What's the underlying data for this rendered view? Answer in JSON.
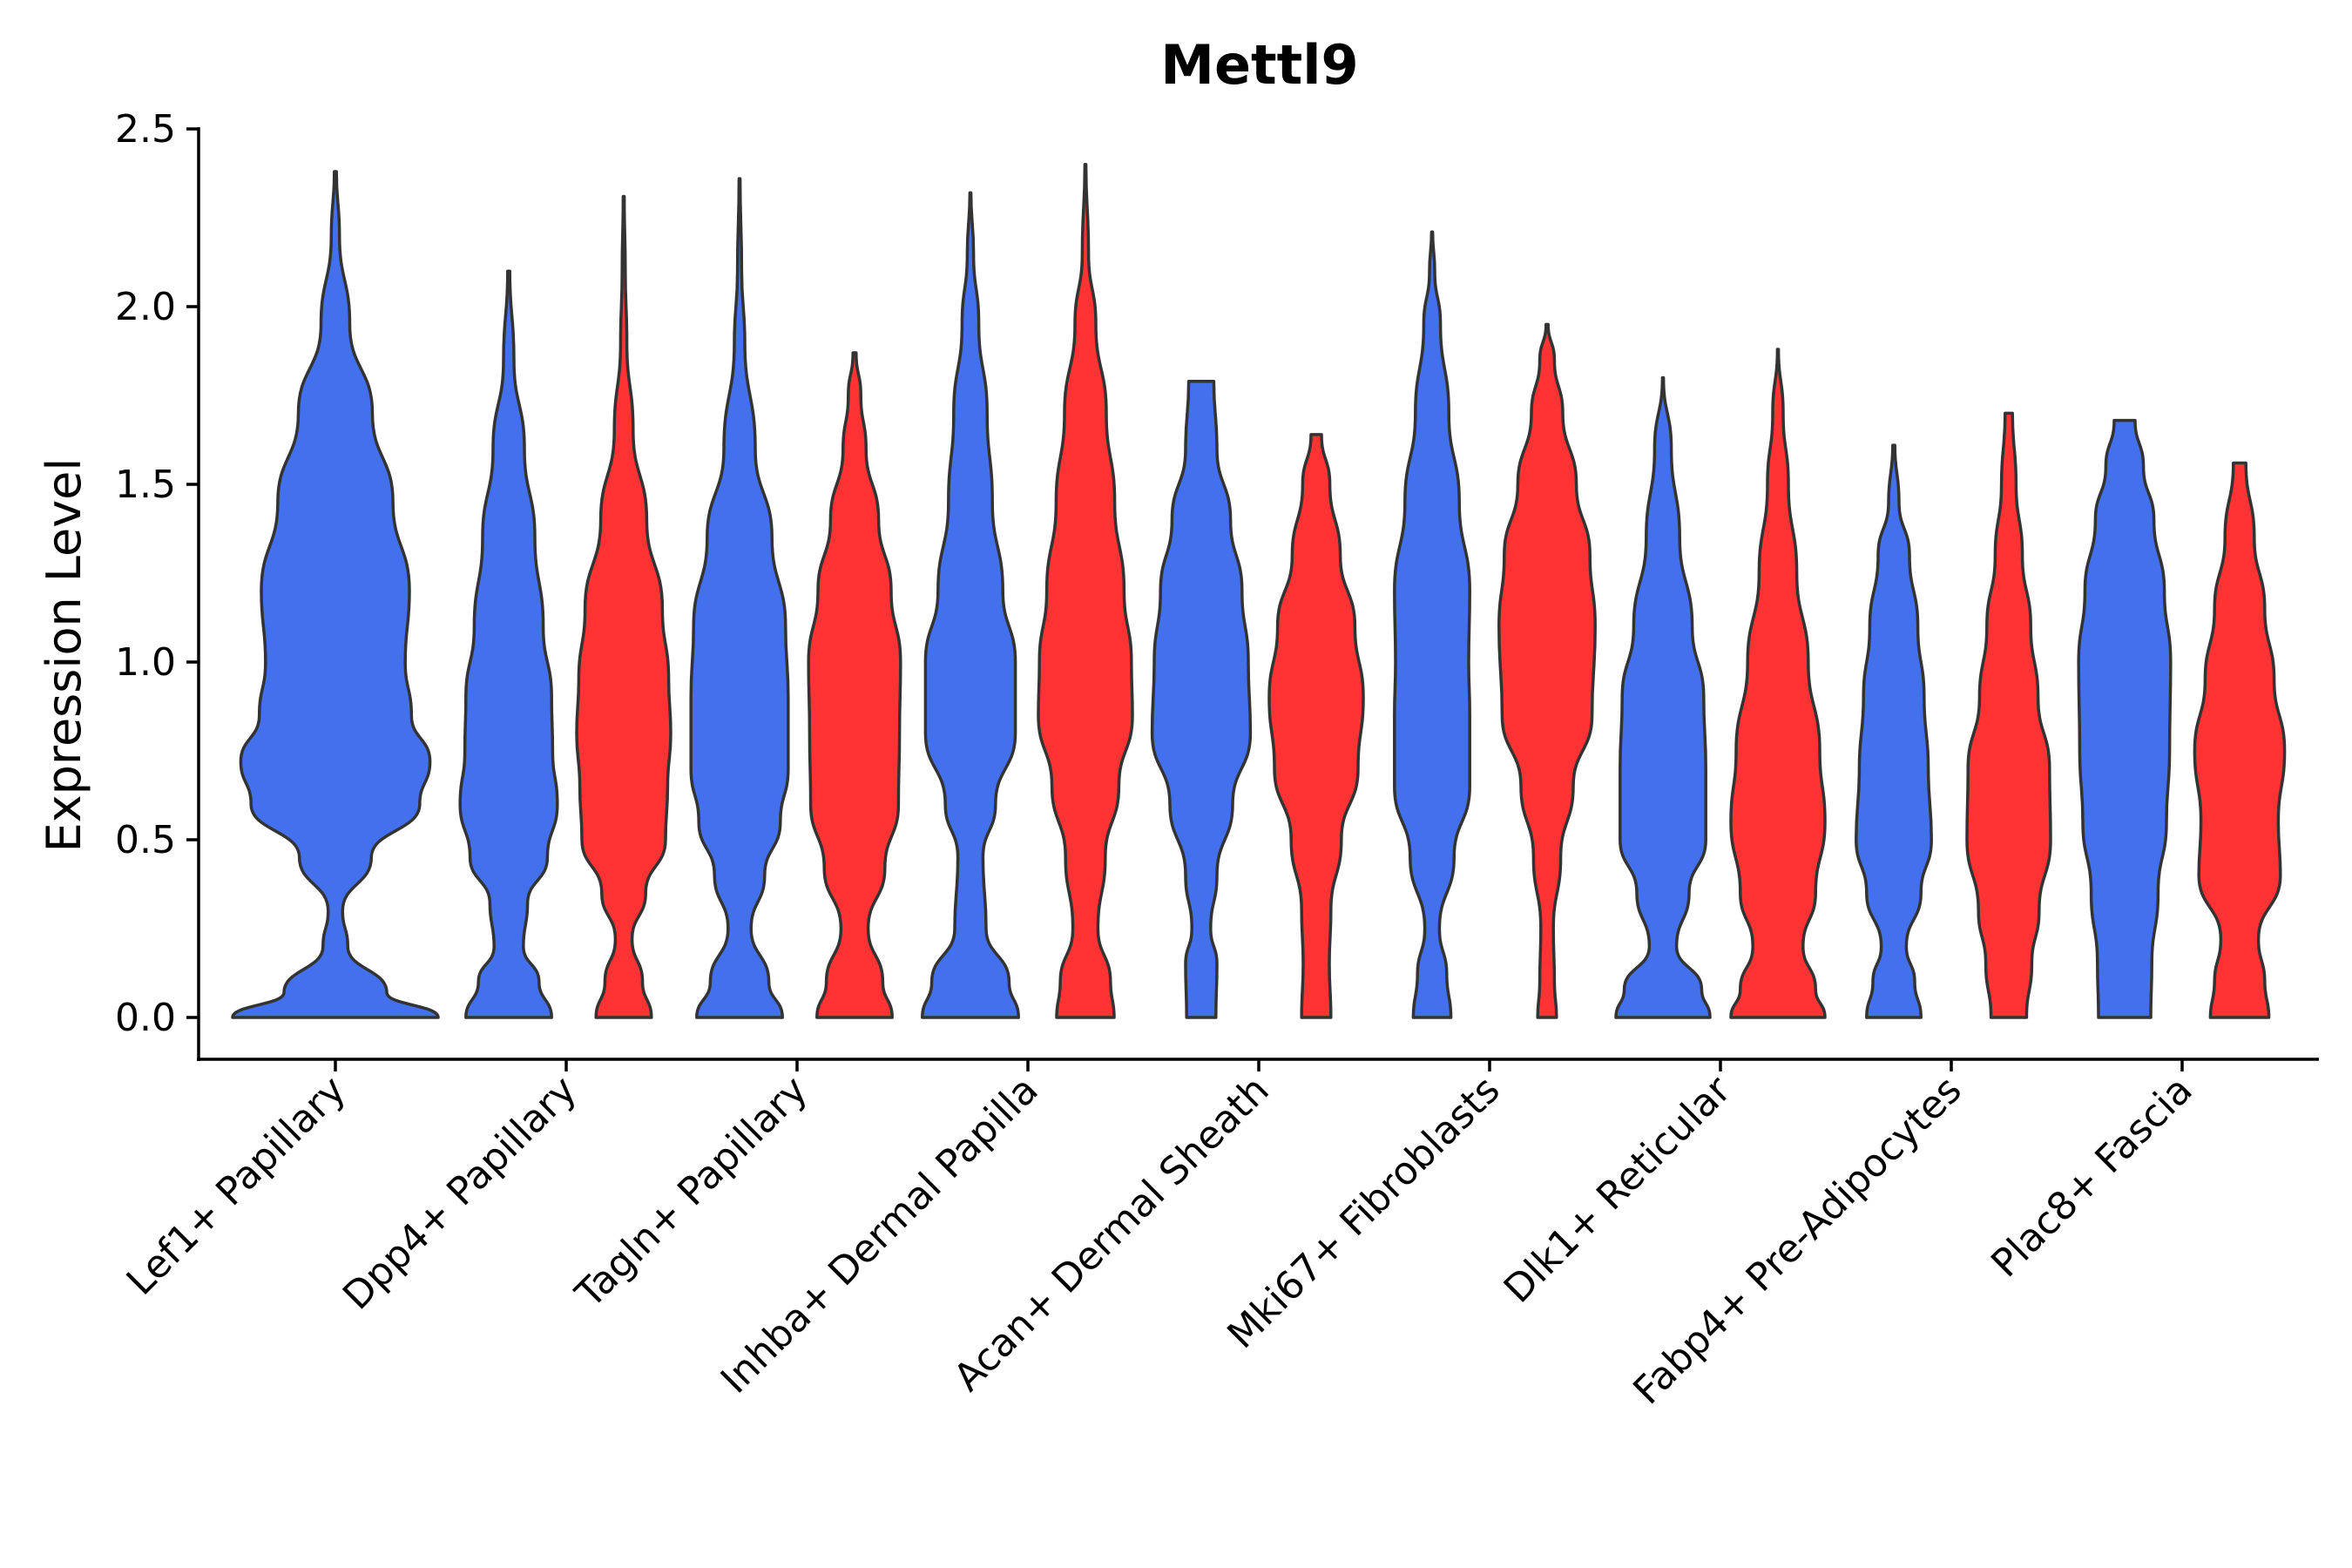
{
  "chart_data": {
    "type": "violin",
    "title": "Mettl9",
    "xlabel": "",
    "ylabel": "Expression Level",
    "ylim": [
      -0.12,
      2.52
    ],
    "yticks": [
      "0.0",
      "0.5",
      "1.0",
      "1.5",
      "2.0",
      "2.5"
    ],
    "ytick_values": [
      0,
      0.5,
      1.0,
      1.5,
      2.0,
      2.5
    ],
    "categories": [
      "Lef1+ Papillary",
      "Dpp4+ Papillary",
      "Tagln+ Papillary",
      "Inhba+ Dermal Papilla",
      "Acan+ Dermal Sheath",
      "Mki67+ Fibroblasts",
      "Dlk1+ Reticular",
      "Fabp4+ Pre-Adipocytes",
      "Plac8+ Fascia"
    ],
    "series_colors": {
      "blue": "#4370EC",
      "red": "#FF3333"
    },
    "violins": [
      {
        "category": 0,
        "group": "blue",
        "max": 2.38,
        "widths": [
          [
            0,
            1.0
          ],
          [
            0.07,
            0.5
          ],
          [
            0.2,
            0.12
          ],
          [
            0.3,
            0.07
          ],
          [
            0.45,
            0.35
          ],
          [
            0.6,
            0.82
          ],
          [
            0.72,
            0.92
          ],
          [
            0.85,
            0.74
          ],
          [
            1.0,
            0.68
          ],
          [
            1.2,
            0.72
          ],
          [
            1.45,
            0.56
          ],
          [
            1.7,
            0.36
          ],
          [
            1.95,
            0.14
          ],
          [
            2.2,
            0.04
          ],
          [
            2.38,
            0.01
          ]
        ]
      },
      {
        "category": 1,
        "group": "blue",
        "max": 2.1,
        "widths": [
          [
            0,
            0.82
          ],
          [
            0.1,
            0.58
          ],
          [
            0.2,
            0.28
          ],
          [
            0.32,
            0.36
          ],
          [
            0.45,
            0.74
          ],
          [
            0.6,
            0.93
          ],
          [
            0.75,
            0.84
          ],
          [
            0.9,
            0.82
          ],
          [
            1.1,
            0.66
          ],
          [
            1.35,
            0.5
          ],
          [
            1.6,
            0.3
          ],
          [
            1.85,
            0.1
          ],
          [
            2.1,
            0.02
          ]
        ]
      },
      {
        "category": 1,
        "group": "red",
        "max": 2.31,
        "widths": [
          [
            0,
            0.53
          ],
          [
            0.1,
            0.36
          ],
          [
            0.22,
            0.16
          ],
          [
            0.35,
            0.42
          ],
          [
            0.5,
            0.8
          ],
          [
            0.65,
            0.84
          ],
          [
            0.8,
            0.9
          ],
          [
            0.95,
            0.86
          ],
          [
            1.15,
            0.74
          ],
          [
            1.4,
            0.44
          ],
          [
            1.65,
            0.18
          ],
          [
            1.9,
            0.06
          ],
          [
            2.1,
            0.03
          ],
          [
            2.31,
            0.01
          ]
        ]
      },
      {
        "category": 2,
        "group": "blue",
        "max": 2.36,
        "widths": [
          [
            0,
            0.82
          ],
          [
            0.1,
            0.56
          ],
          [
            0.25,
            0.22
          ],
          [
            0.4,
            0.48
          ],
          [
            0.55,
            0.78
          ],
          [
            0.7,
            0.93
          ],
          [
            0.9,
            0.93
          ],
          [
            1.1,
            0.88
          ],
          [
            1.35,
            0.62
          ],
          [
            1.6,
            0.3
          ],
          [
            1.9,
            0.1
          ],
          [
            2.1,
            0.04
          ],
          [
            2.36,
            0.01
          ]
        ]
      },
      {
        "category": 2,
        "group": "red",
        "max": 1.87,
        "widths": [
          [
            0,
            0.72
          ],
          [
            0.1,
            0.54
          ],
          [
            0.25,
            0.26
          ],
          [
            0.42,
            0.58
          ],
          [
            0.6,
            0.84
          ],
          [
            0.8,
            0.86
          ],
          [
            1.0,
            0.88
          ],
          [
            1.2,
            0.7
          ],
          [
            1.4,
            0.46
          ],
          [
            1.6,
            0.22
          ],
          [
            1.75,
            0.12
          ],
          [
            1.87,
            0.03
          ]
        ]
      },
      {
        "category": 3,
        "group": "blue",
        "max": 2.32,
        "widths": [
          [
            0,
            0.92
          ],
          [
            0.1,
            0.74
          ],
          [
            0.25,
            0.3
          ],
          [
            0.45,
            0.24
          ],
          [
            0.6,
            0.48
          ],
          [
            0.8,
            0.86
          ],
          [
            1.0,
            0.86
          ],
          [
            1.2,
            0.62
          ],
          [
            1.45,
            0.42
          ],
          [
            1.7,
            0.32
          ],
          [
            1.95,
            0.16
          ],
          [
            2.15,
            0.06
          ],
          [
            2.32,
            0.01
          ]
        ]
      },
      {
        "category": 3,
        "group": "red",
        "max": 2.4,
        "widths": [
          [
            0,
            0.55
          ],
          [
            0.1,
            0.48
          ],
          [
            0.25,
            0.24
          ],
          [
            0.45,
            0.38
          ],
          [
            0.65,
            0.64
          ],
          [
            0.85,
            0.9
          ],
          [
            1.0,
            0.88
          ],
          [
            1.2,
            0.74
          ],
          [
            1.45,
            0.56
          ],
          [
            1.7,
            0.4
          ],
          [
            1.95,
            0.2
          ],
          [
            2.15,
            0.06
          ],
          [
            2.4,
            0.01
          ]
        ]
      },
      {
        "category": 4,
        "group": "blue",
        "max": 1.79,
        "widths": [
          [
            0,
            0.28
          ],
          [
            0.15,
            0.3
          ],
          [
            0.25,
            0.18
          ],
          [
            0.4,
            0.3
          ],
          [
            0.6,
            0.6
          ],
          [
            0.8,
            0.94
          ],
          [
            1.0,
            0.9
          ],
          [
            1.2,
            0.78
          ],
          [
            1.4,
            0.56
          ],
          [
            1.6,
            0.3
          ],
          [
            1.79,
            0.24
          ]
        ]
      },
      {
        "category": 4,
        "group": "red",
        "max": 1.64,
        "widths": [
          [
            0,
            0.28
          ],
          [
            0.15,
            0.25
          ],
          [
            0.3,
            0.28
          ],
          [
            0.5,
            0.48
          ],
          [
            0.7,
            0.8
          ],
          [
            0.9,
            0.9
          ],
          [
            1.1,
            0.74
          ],
          [
            1.3,
            0.46
          ],
          [
            1.5,
            0.26
          ],
          [
            1.64,
            0.1
          ]
        ]
      },
      {
        "category": 5,
        "group": "blue",
        "max": 2.21,
        "widths": [
          [
            0,
            0.36
          ],
          [
            0.12,
            0.28
          ],
          [
            0.25,
            0.14
          ],
          [
            0.45,
            0.42
          ],
          [
            0.65,
            0.72
          ],
          [
            0.85,
            0.72
          ],
          [
            1.0,
            0.7
          ],
          [
            1.2,
            0.72
          ],
          [
            1.45,
            0.52
          ],
          [
            1.7,
            0.32
          ],
          [
            1.95,
            0.16
          ],
          [
            2.1,
            0.05
          ],
          [
            2.21,
            0.01
          ]
        ]
      },
      {
        "category": 5,
        "group": "red",
        "max": 1.95,
        "widths": [
          [
            0,
            0.18
          ],
          [
            0.1,
            0.14
          ],
          [
            0.25,
            0.12
          ],
          [
            0.45,
            0.26
          ],
          [
            0.65,
            0.5
          ],
          [
            0.85,
            0.86
          ],
          [
            1.1,
            0.92
          ],
          [
            1.3,
            0.82
          ],
          [
            1.5,
            0.56
          ],
          [
            1.7,
            0.3
          ],
          [
            1.85,
            0.14
          ],
          [
            1.95,
            0.02
          ]
        ]
      },
      {
        "category": 6,
        "group": "blue",
        "max": 1.8,
        "widths": [
          [
            0,
            0.9
          ],
          [
            0.08,
            0.74
          ],
          [
            0.2,
            0.26
          ],
          [
            0.35,
            0.5
          ],
          [
            0.5,
            0.82
          ],
          [
            0.7,
            0.82
          ],
          [
            0.9,
            0.78
          ],
          [
            1.1,
            0.56
          ],
          [
            1.35,
            0.32
          ],
          [
            1.6,
            0.16
          ],
          [
            1.8,
            0.01
          ]
        ]
      },
      {
        "category": 6,
        "group": "red",
        "max": 1.88,
        "widths": [
          [
            0,
            0.9
          ],
          [
            0.08,
            0.72
          ],
          [
            0.2,
            0.48
          ],
          [
            0.35,
            0.72
          ],
          [
            0.55,
            0.9
          ],
          [
            0.75,
            0.8
          ],
          [
            1.0,
            0.58
          ],
          [
            1.25,
            0.36
          ],
          [
            1.5,
            0.2
          ],
          [
            1.7,
            0.1
          ],
          [
            1.88,
            0.01
          ]
        ]
      },
      {
        "category": 7,
        "group": "blue",
        "max": 1.61,
        "widths": [
          [
            0,
            0.52
          ],
          [
            0.1,
            0.4
          ],
          [
            0.2,
            0.24
          ],
          [
            0.35,
            0.52
          ],
          [
            0.5,
            0.72
          ],
          [
            0.7,
            0.66
          ],
          [
            0.9,
            0.58
          ],
          [
            1.1,
            0.46
          ],
          [
            1.3,
            0.3
          ],
          [
            1.45,
            0.1
          ],
          [
            1.61,
            0.02
          ]
        ]
      },
      {
        "category": 7,
        "group": "red",
        "max": 1.7,
        "widths": [
          [
            0,
            0.34
          ],
          [
            0.15,
            0.44
          ],
          [
            0.3,
            0.58
          ],
          [
            0.5,
            0.8
          ],
          [
            0.7,
            0.78
          ],
          [
            0.9,
            0.56
          ],
          [
            1.1,
            0.42
          ],
          [
            1.3,
            0.26
          ],
          [
            1.5,
            0.14
          ],
          [
            1.7,
            0.07
          ]
        ]
      },
      {
        "category": 8,
        "group": "blue",
        "max": 1.68,
        "widths": [
          [
            0,
            0.5
          ],
          [
            0.15,
            0.52
          ],
          [
            0.35,
            0.64
          ],
          [
            0.55,
            0.8
          ],
          [
            0.75,
            0.86
          ],
          [
            1.0,
            0.88
          ],
          [
            1.2,
            0.76
          ],
          [
            1.4,
            0.56
          ],
          [
            1.55,
            0.36
          ],
          [
            1.68,
            0.2
          ]
        ]
      },
      {
        "category": 8,
        "group": "red",
        "max": 1.56,
        "widths": [
          [
            0,
            0.56
          ],
          [
            0.1,
            0.48
          ],
          [
            0.22,
            0.36
          ],
          [
            0.4,
            0.78
          ],
          [
            0.55,
            0.74
          ],
          [
            0.75,
            0.86
          ],
          [
            0.95,
            0.66
          ],
          [
            1.15,
            0.48
          ],
          [
            1.35,
            0.28
          ],
          [
            1.56,
            0.12
          ]
        ]
      }
    ]
  }
}
